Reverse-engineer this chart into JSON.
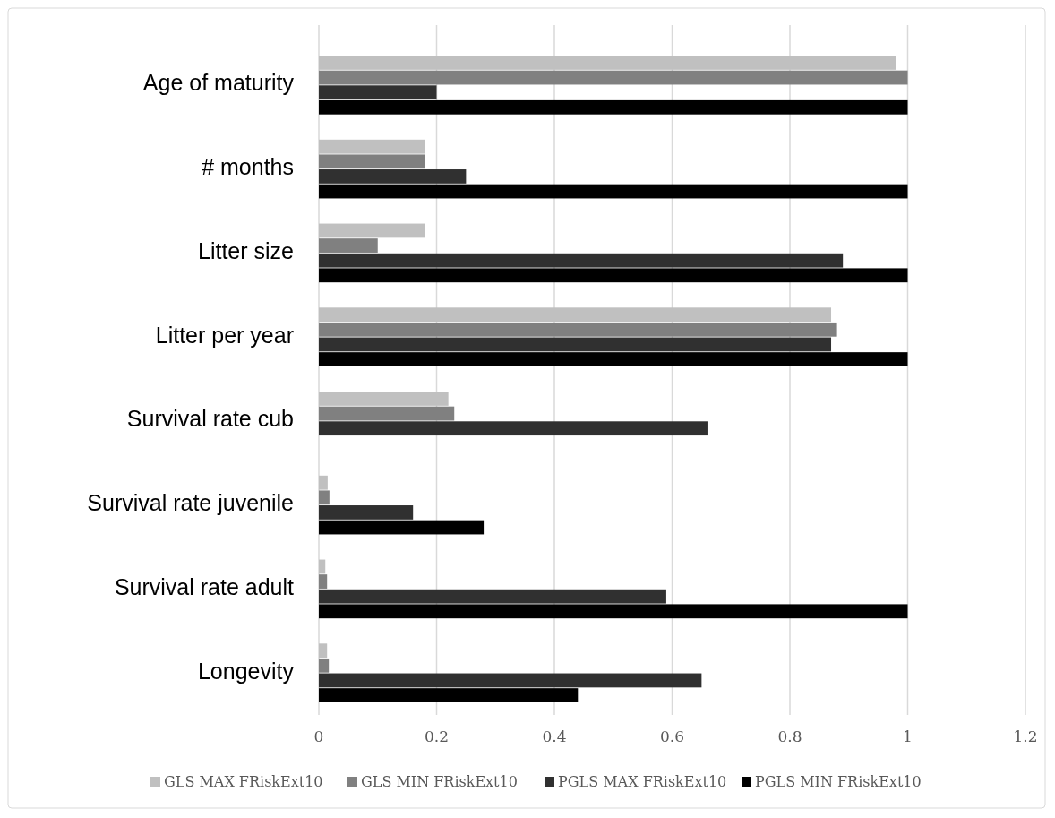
{
  "chart_data": {
    "type": "bar",
    "orientation": "horizontal",
    "categories": [
      "Age of maturity",
      "# months",
      "Litter size",
      "Litter per year",
      "Survival rate cub",
      "Survival rate juvenile",
      "Survival rate adult",
      "Longevity"
    ],
    "series": [
      {
        "name": "GLS MAX FRiskExt10",
        "color": "#c0c0c0",
        "values": [
          0.98,
          0.18,
          0.18,
          0.87,
          0.22,
          0.015,
          0.011,
          0.014
        ]
      },
      {
        "name": "GLS MIN FRiskExt10",
        "color": "#808080",
        "values": [
          1.0,
          0.18,
          0.1,
          0.88,
          0.23,
          0.018,
          0.014,
          0.017
        ]
      },
      {
        "name": "PGLS MAX FRiskExt10",
        "color": "#303030",
        "values": [
          0.2,
          0.25,
          0.89,
          0.87,
          0.66,
          0.16,
          0.59,
          0.65
        ]
      },
      {
        "name": "PGLS MIN FRiskExt10",
        "color": "#000000",
        "values": [
          1.0,
          1.0,
          1.0,
          1.0,
          null,
          0.28,
          1.0,
          0.44
        ]
      }
    ],
    "xlim": [
      0,
      1.2
    ],
    "xticks": [
      0,
      {
        "value": 0.2,
        "label": "0.2"
      },
      {
        "value": 0.4,
        "label": "0.4"
      },
      {
        "value": 0.6,
        "label": "0.6"
      },
      {
        "value": 0.8,
        "label": "0.8"
      },
      1,
      {
        "value": 1.2,
        "label": "1.2"
      }
    ],
    "grid": "x",
    "legend": "bottom"
  }
}
